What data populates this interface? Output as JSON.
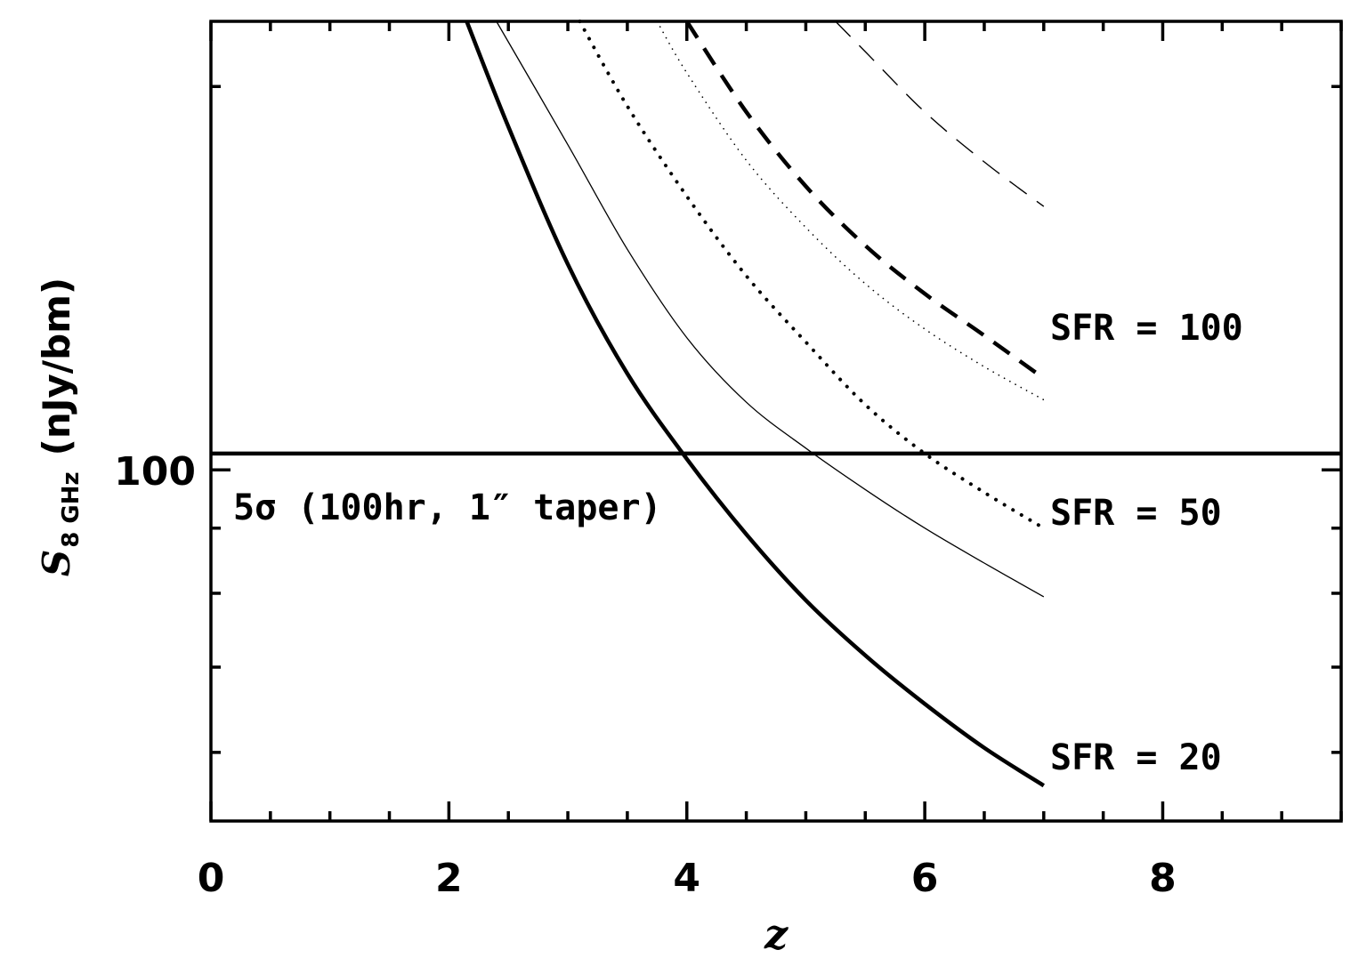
{
  "chart_data": {
    "type": "line",
    "title": "",
    "xlabel": "z",
    "ylabel": {
      "symbol": "S",
      "subscript": "8 GHz",
      "units": "(nJy/bm)"
    },
    "xlim": [
      0,
      9.5
    ],
    "ylim": [
      53,
      225
    ],
    "yscale": "log",
    "x_ticks": [
      0,
      2,
      4,
      6,
      8
    ],
    "y_ticks": [
      100
    ],
    "threshold": {
      "y": 103,
      "label": "5σ (100hr, 1″ taper)"
    },
    "series": [
      {
        "group": "SFR = 20",
        "style": "thick-solid",
        "x": [
          2.15,
          2.5,
          3.0,
          3.5,
          4.0,
          4.5,
          5.0,
          5.5,
          6.0,
          6.5,
          7.0
        ],
        "y": [
          225,
          186,
          145,
          119,
          102,
          89,
          79,
          71.5,
          65.5,
          60.5,
          56.5
        ]
      },
      {
        "group": "SFR = 20",
        "style": "thin-solid",
        "x": [
          2.4,
          3.0,
          3.5,
          4.0,
          4.5,
          5.0,
          5.5,
          6.0,
          6.5,
          7.0
        ],
        "y": [
          225,
          180,
          149,
          127,
          113,
          104,
          96.5,
          90,
          84.5,
          79.5
        ]
      },
      {
        "group": "SFR = 50",
        "style": "thick-dotted",
        "x": [
          3.1,
          3.5,
          4.0,
          4.5,
          5.0,
          5.5,
          6.0,
          6.5,
          7.0
        ],
        "y": [
          225,
          193,
          164,
          142,
          126,
          112.5,
          103,
          96,
          90
        ]
      },
      {
        "group": "SFR = 50",
        "style": "thin-dotted",
        "x": [
          3.75,
          4.0,
          4.5,
          5.0,
          5.5,
          6.0,
          6.5,
          7.0
        ],
        "y": [
          225,
          205,
          175,
          155,
          140,
          129,
          120.5,
          113.5
        ]
      },
      {
        "group": "SFR = 100",
        "style": "thick-dashed",
        "x": [
          4.0,
          4.5,
          5.0,
          5.5,
          6.0,
          6.5,
          7.0
        ],
        "y": [
          225,
          191,
          167,
          150,
          137.5,
          127.5,
          118
        ]
      },
      {
        "group": "SFR = 100",
        "style": "thin-dashed",
        "x": [
          5.25,
          5.5,
          6.0,
          6.5,
          7.0
        ],
        "y": [
          225,
          213,
          191,
          174.5,
          161
        ]
      }
    ],
    "annotations": [
      "SFR = 100",
      "SFR = 50",
      "SFR = 20"
    ]
  }
}
